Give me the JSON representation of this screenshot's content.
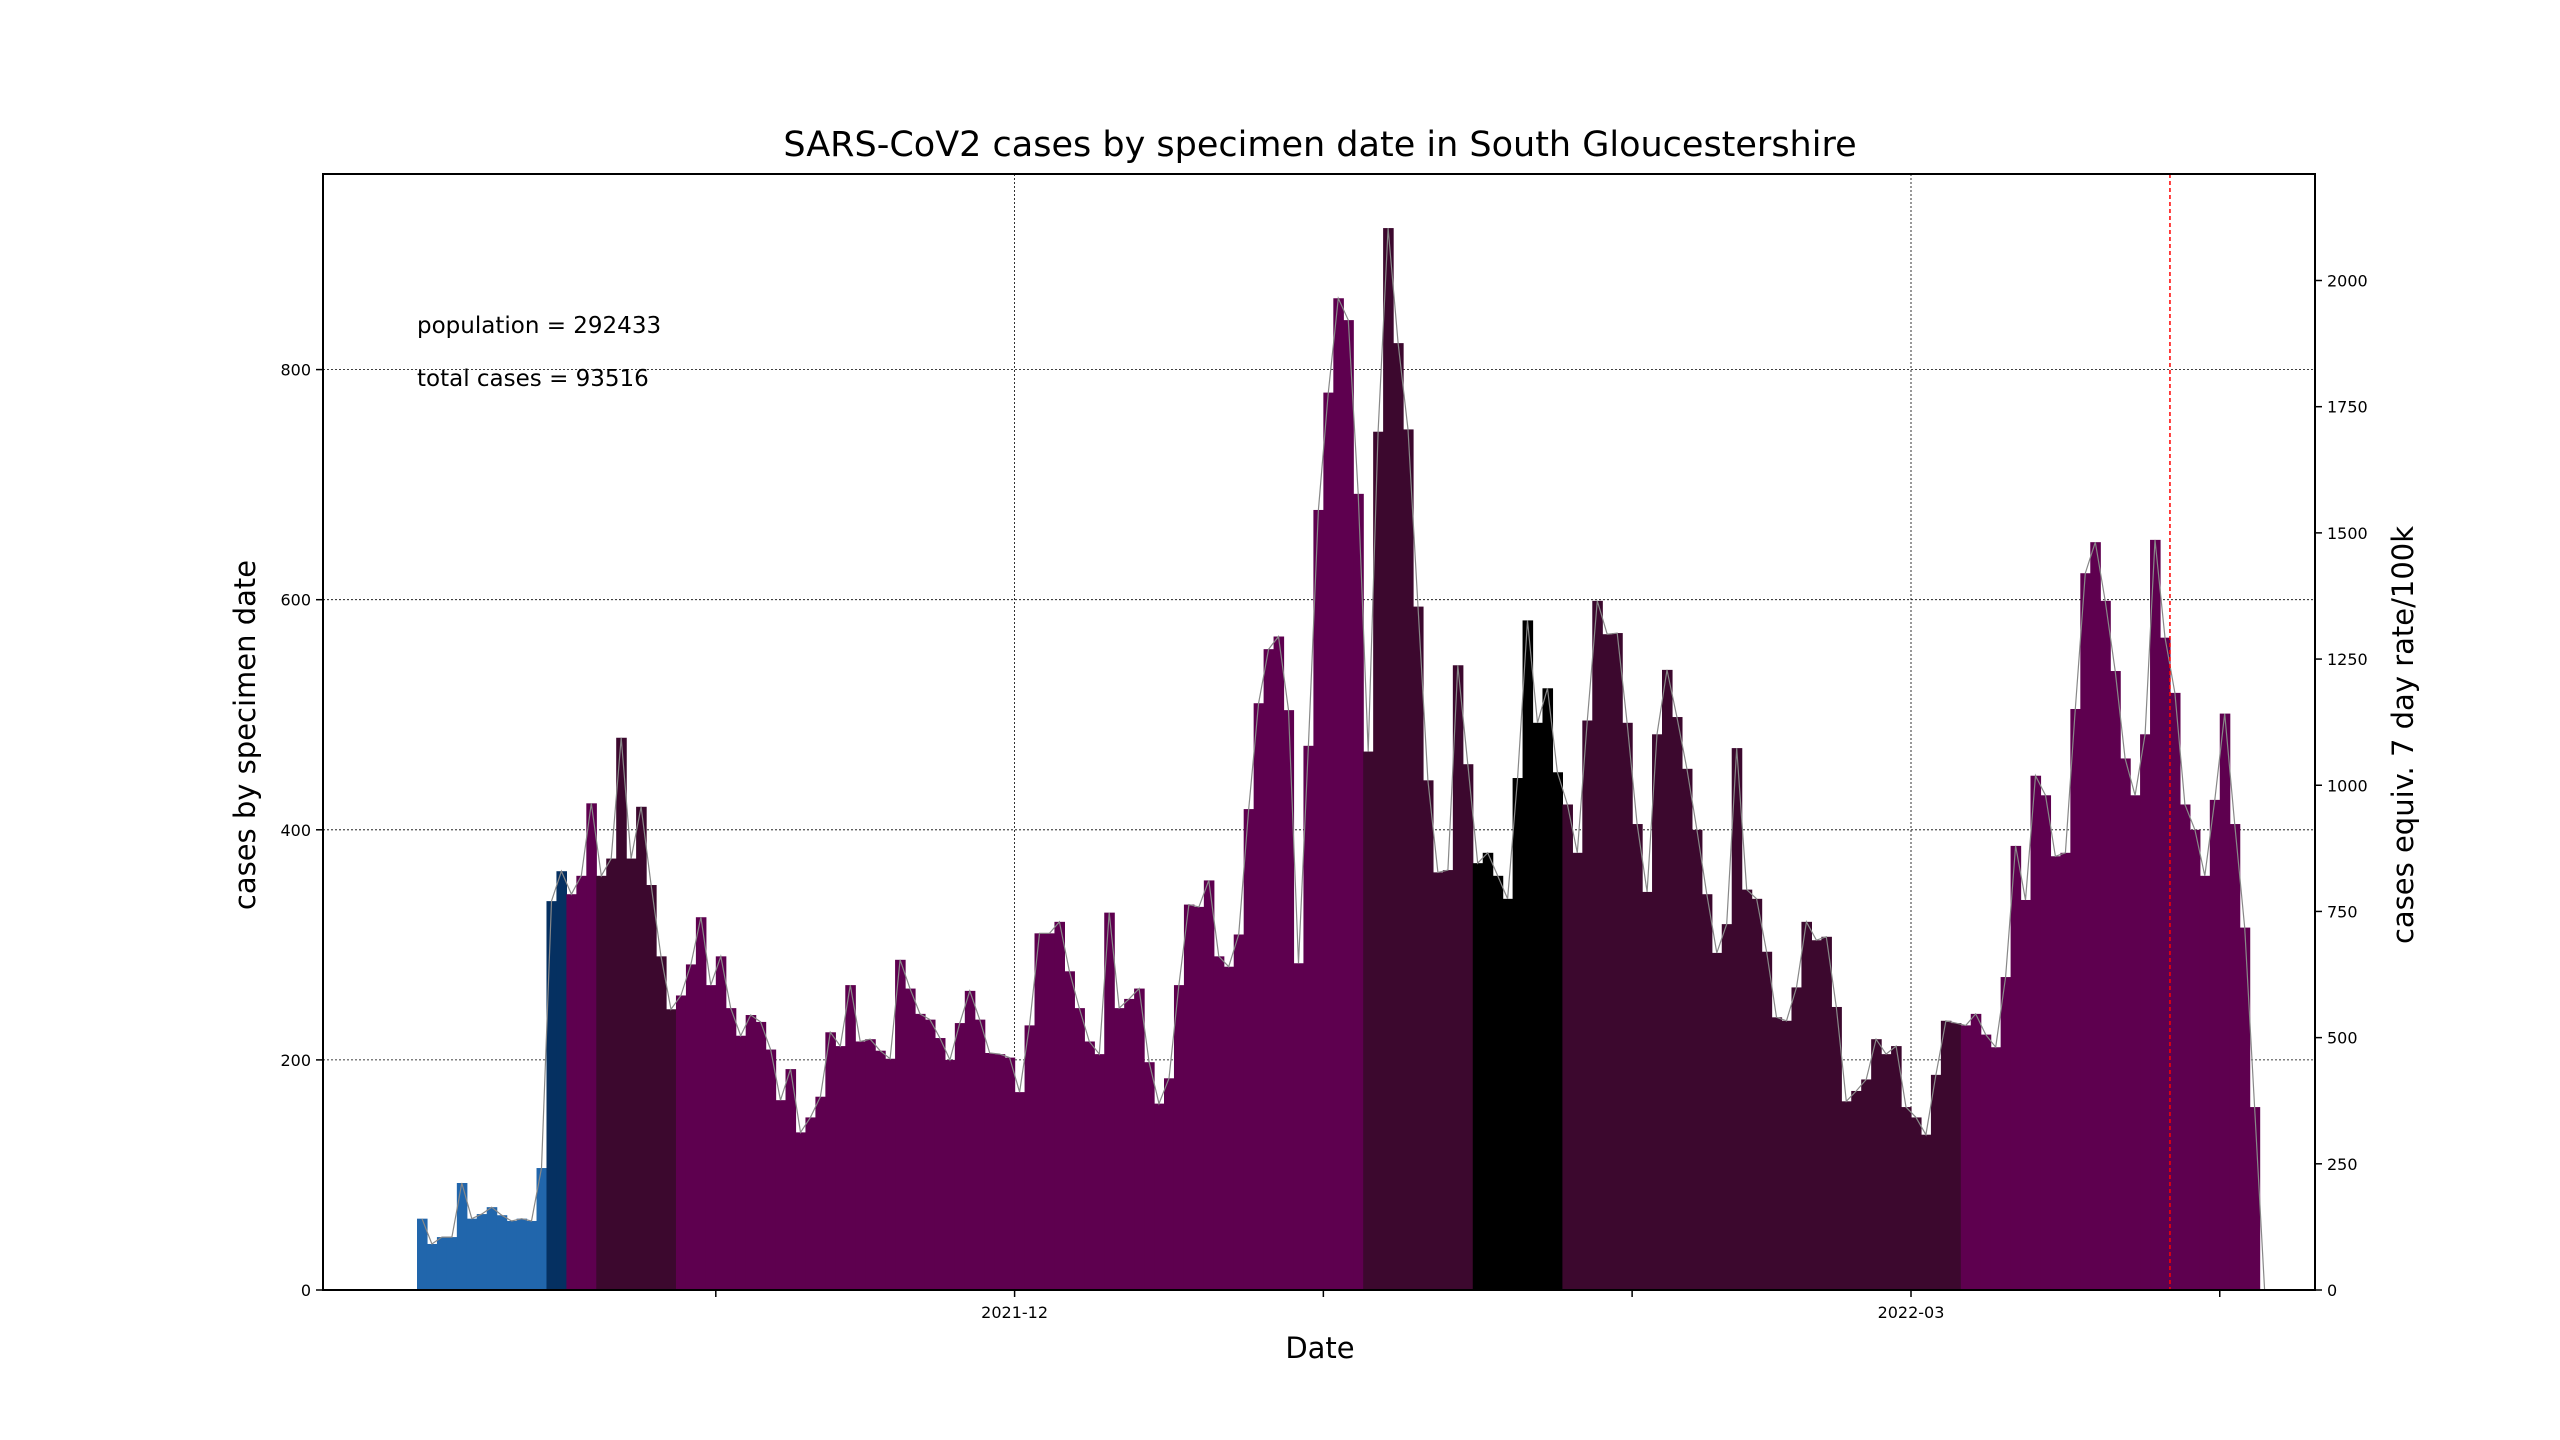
{
  "chart_data": {
    "type": "bar",
    "title": "SARS-CoV2 cases by specimen date in South Gloucestershire",
    "xlabel": "Date",
    "ylabel": "cases by specimen date",
    "y2label": "cases equiv. 7 day rate/100k",
    "annotations": [
      "population = 292433",
      "total cases = 93516"
    ],
    "start_date": "2021-10-02",
    "x_ticks": [
      {
        "date": "2021-11-01",
        "label": ""
      },
      {
        "date": "2021-12-01",
        "label": "2021-12"
      },
      {
        "date": "2022-01-01",
        "label": ""
      },
      {
        "date": "2022-02-01",
        "label": ""
      },
      {
        "date": "2022-03-01",
        "label": "2022-03"
      },
      {
        "date": "2022-04-01",
        "label": ""
      }
    ],
    "ylim": [
      0,
      970
    ],
    "y_ticks": [
      0,
      200,
      400,
      600,
      800
    ],
    "y2lim": [
      0,
      2211
    ],
    "y2_ticks": [
      0,
      250,
      500,
      750,
      1000,
      1250,
      1500,
      1750,
      2000
    ],
    "grid": true,
    "vline_date": "2022-03-27",
    "values": [
      62,
      40,
      46,
      46,
      93,
      62,
      66,
      72,
      65,
      60,
      62,
      60,
      106,
      338,
      364,
      344,
      360,
      423,
      360,
      375,
      480,
      375,
      420,
      352,
      290,
      244,
      256,
      283,
      324,
      265,
      290,
      245,
      221,
      239,
      233,
      209,
      165,
      192,
      137,
      150,
      168,
      224,
      212,
      265,
      216,
      218,
      208,
      201,
      287,
      262,
      240,
      235,
      219,
      200,
      232,
      260,
      235,
      206,
      205,
      202,
      172,
      230,
      310,
      310,
      320,
      277,
      245,
      216,
      205,
      328,
      245,
      253,
      262,
      198,
      162,
      184,
      265,
      335,
      333,
      356,
      290,
      281,
      309,
      418,
      510,
      557,
      568,
      504,
      284,
      473,
      678,
      780,
      862,
      843,
      692,
      468,
      746,
      923,
      823,
      748,
      594,
      443,
      363,
      365,
      543,
      457,
      371,
      380,
      360,
      340,
      445,
      582,
      493,
      523,
      450,
      422,
      380,
      495,
      599,
      570,
      571,
      493,
      405,
      346,
      483,
      539,
      498,
      453,
      400,
      344,
      293,
      318,
      471,
      348,
      340,
      294,
      237,
      234,
      263,
      320,
      304,
      307,
      246,
      164,
      173,
      183,
      218,
      205,
      212,
      159,
      150,
      135,
      187,
      234,
      232,
      230,
      240,
      222,
      211,
      272,
      386,
      339,
      447,
      430,
      377,
      380,
      505,
      623,
      650,
      599,
      538,
      462,
      430,
      483,
      652,
      567,
      519,
      422,
      400,
      360,
      426,
      501,
      405,
      315,
      159,
      0
    ],
    "bands": [
      {
        "start": 0,
        "end": 13,
        "color": "#2166ac"
      },
      {
        "start": 13,
        "end": 15,
        "color": "#053061"
      },
      {
        "start": 15,
        "end": 18,
        "color": "#5e004f"
      },
      {
        "start": 18,
        "end": 26,
        "color": "#3c082e"
      },
      {
        "start": 26,
        "end": 95,
        "color": "#5e004f"
      },
      {
        "start": 95,
        "end": 106,
        "color": "#3c082e"
      },
      {
        "start": 106,
        "end": 115,
        "color": "#000000"
      },
      {
        "start": 115,
        "end": 155,
        "color": "#3c082e"
      },
      {
        "start": 155,
        "end": 188,
        "color": "#5e004f"
      },
      {
        "start": 188,
        "end": 210,
        "color": "#3c082e"
      },
      {
        "start": 210,
        "end": 216,
        "color": "#9e8498"
      }
    ],
    "colors": {
      "line": "#888888",
      "grid": "#000000",
      "vline": "#ff0000"
    }
  }
}
